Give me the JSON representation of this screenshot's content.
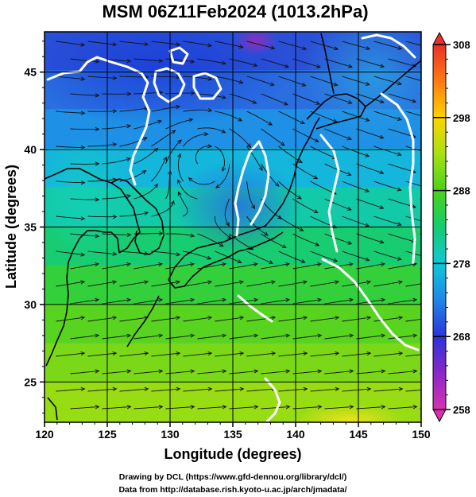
{
  "title": "MSM 06Z11Feb2024 (1013.2hPa)",
  "credits": {
    "line1": "Drawing by DCL (https://www.gfd-dennou.org/library/dcl/)",
    "line2": "Data from http://database.rish.kyoto-u.ac.jp/arch/jmadata/"
  },
  "chart_data": {
    "type": "heatmap",
    "title": "MSM 06Z11Feb2024 (1013.2hPa)",
    "xlabel": "Longitude (degrees)",
    "ylabel": "Latitude (degrees)",
    "xlim": [
      120,
      150
    ],
    "ylim": [
      22.4,
      47.6
    ],
    "x_ticks": [
      120,
      125,
      130,
      135,
      140,
      145,
      150
    ],
    "x_tick_labels": [
      "120",
      "125",
      "130",
      "135",
      "140",
      "145",
      "150"
    ],
    "y_ticks": [
      25,
      30,
      35,
      40,
      45
    ],
    "y_tick_labels": [
      "25",
      "30",
      "35",
      "40",
      "45"
    ],
    "grid": true,
    "overlays": [
      "temperature shading",
      "streamlines",
      "white contour lines",
      "coastlines"
    ],
    "colorbar": {
      "range": [
        258,
        308
      ],
      "labeled_ticks": [
        258,
        268,
        278,
        288,
        298,
        308
      ],
      "labeled_tick_labels": [
        "258",
        "268",
        "278",
        "288",
        "298",
        "308"
      ],
      "colors": [
        "#d830b0",
        "#8a28c8",
        "#2a34d8",
        "#1e86e8",
        "#10c8d8",
        "#14cc70",
        "#4ad21a",
        "#a8e012",
        "#ffd400",
        "#ff7a10",
        "#e83028"
      ],
      "extend": "both"
    }
  }
}
